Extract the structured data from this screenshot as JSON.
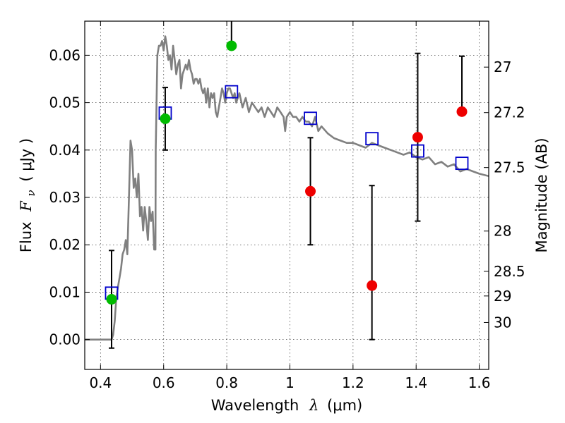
{
  "chart_data": {
    "type": "scatter",
    "title": "",
    "x_label": {
      "prefix": "Wavelength",
      "symbol": "λ",
      "unit": "(μm)"
    },
    "y_label": {
      "prefix": "Flux",
      "symbol": "F",
      "subscript": "ν",
      "unit": "( μJy )"
    },
    "y2_label": "Magnitude (AB)",
    "xlim": [
      0.35,
      1.63
    ],
    "ylim": [
      -0.0063,
      0.0672
    ],
    "x_ticks": [
      0.4,
      0.6,
      0.8,
      1.0,
      1.2,
      1.4,
      1.6
    ],
    "x_tick_labels": [
      "0.4",
      "0.6",
      "0.8",
      "1",
      "1.2",
      "1.4",
      "1.6"
    ],
    "y_ticks": [
      0.0,
      0.01,
      0.02,
      0.03,
      0.04,
      0.05,
      0.06
    ],
    "y_tick_labels": [
      "0.00",
      "0.01",
      "0.02",
      "0.03",
      "0.04",
      "0.05",
      "0.06"
    ],
    "y2_ticks": [
      {
        "flux": 0.0575,
        "label": "27"
      },
      {
        "flux": 0.0479,
        "label": "27.2"
      },
      {
        "flux": 0.0363,
        "label": "27.5"
      },
      {
        "flux": 0.0229,
        "label": "28"
      },
      {
        "flux": 0.0144,
        "label": "28.5"
      },
      {
        "flux": 0.0092,
        "label": "29"
      },
      {
        "flux": 0.0036,
        "label": "30"
      }
    ],
    "grid": true,
    "colors": {
      "sed": "#808080",
      "model": "#0000cc",
      "green": "#00bb00",
      "red": "#ee0000",
      "error": "#000000"
    },
    "sed_curve": {
      "x": [
        0.35,
        0.43,
        0.435,
        0.44,
        0.445,
        0.45,
        0.455,
        0.46,
        0.465,
        0.47,
        0.475,
        0.48,
        0.485,
        0.49,
        0.495,
        0.5,
        0.505,
        0.51,
        0.515,
        0.52,
        0.525,
        0.53,
        0.535,
        0.54,
        0.545,
        0.55,
        0.555,
        0.56,
        0.565,
        0.57,
        0.574,
        0.575,
        0.578,
        0.58,
        0.585,
        0.59,
        0.595,
        0.6,
        0.605,
        0.61,
        0.615,
        0.62,
        0.625,
        0.63,
        0.635,
        0.64,
        0.645,
        0.65,
        0.655,
        0.66,
        0.665,
        0.67,
        0.675,
        0.68,
        0.685,
        0.69,
        0.695,
        0.7,
        0.705,
        0.71,
        0.715,
        0.72,
        0.725,
        0.73,
        0.735,
        0.74,
        0.745,
        0.75,
        0.755,
        0.76,
        0.765,
        0.77,
        0.775,
        0.78,
        0.785,
        0.79,
        0.795,
        0.8,
        0.805,
        0.81,
        0.815,
        0.82,
        0.825,
        0.83,
        0.835,
        0.84,
        0.85,
        0.86,
        0.87,
        0.88,
        0.89,
        0.9,
        0.91,
        0.92,
        0.93,
        0.94,
        0.95,
        0.96,
        0.97,
        0.98,
        0.985,
        0.99,
        1.0,
        1.01,
        1.02,
        1.03,
        1.04,
        1.05,
        1.06,
        1.07,
        1.08,
        1.09,
        1.1,
        1.12,
        1.14,
        1.16,
        1.18,
        1.2,
        1.22,
        1.24,
        1.26,
        1.28,
        1.3,
        1.32,
        1.34,
        1.36,
        1.38,
        1.4,
        1.42,
        1.44,
        1.46,
        1.48,
        1.5,
        1.52,
        1.54,
        1.56,
        1.58,
        1.6,
        1.63
      ],
      "y": [
        0.0,
        0.0,
        0.0,
        0.001,
        0.004,
        0.009,
        0.011,
        0.013,
        0.015,
        0.018,
        0.019,
        0.021,
        0.018,
        0.03,
        0.042,
        0.04,
        0.032,
        0.034,
        0.03,
        0.035,
        0.026,
        0.028,
        0.023,
        0.028,
        0.025,
        0.021,
        0.028,
        0.025,
        0.027,
        0.019,
        0.019,
        0.04,
        0.052,
        0.06,
        0.062,
        0.062,
        0.063,
        0.061,
        0.064,
        0.062,
        0.059,
        0.06,
        0.057,
        0.062,
        0.059,
        0.056,
        0.058,
        0.059,
        0.053,
        0.056,
        0.057,
        0.058,
        0.057,
        0.059,
        0.057,
        0.056,
        0.054,
        0.055,
        0.055,
        0.054,
        0.055,
        0.053,
        0.052,
        0.053,
        0.05,
        0.053,
        0.049,
        0.052,
        0.051,
        0.052,
        0.048,
        0.047,
        0.049,
        0.051,
        0.053,
        0.052,
        0.05,
        0.052,
        0.053,
        0.053,
        0.052,
        0.051,
        0.052,
        0.05,
        0.051,
        0.052,
        0.049,
        0.051,
        0.048,
        0.05,
        0.049,
        0.048,
        0.049,
        0.047,
        0.049,
        0.048,
        0.047,
        0.049,
        0.048,
        0.047,
        0.044,
        0.047,
        0.048,
        0.047,
        0.047,
        0.046,
        0.047,
        0.046,
        0.046,
        0.045,
        0.047,
        0.044,
        0.045,
        0.0435,
        0.0425,
        0.042,
        0.0415,
        0.0415,
        0.041,
        0.0405,
        0.0415,
        0.041,
        0.0405,
        0.04,
        0.0395,
        0.039,
        0.0395,
        0.0385,
        0.038,
        0.0385,
        0.037,
        0.0375,
        0.0365,
        0.037,
        0.0355,
        0.036,
        0.0355,
        0.035,
        0.0345
      ]
    },
    "model_squares": {
      "x": [
        0.435,
        0.605,
        0.815,
        1.065,
        1.26,
        1.405,
        1.545
      ],
      "y": [
        0.0098,
        0.0478,
        0.0523,
        0.0467,
        0.0424,
        0.0398,
        0.0372
      ]
    },
    "observed": {
      "x": [
        0.435,
        0.605,
        0.815,
        1.065,
        1.26,
        1.405,
        1.545
      ],
      "y": [
        0.0085,
        0.0466,
        0.062,
        0.0313,
        0.0114,
        0.0427,
        0.0481
      ],
      "yerr_low": [
        0.0103,
        0.0066,
        0.0,
        0.0113,
        0.0114,
        0.0177,
        0.0
      ],
      "yerr_high": [
        0.0103,
        0.0066,
        0.01,
        0.0113,
        0.0211,
        0.0177,
        0.0117
      ],
      "series_color": [
        "green",
        "green",
        "green",
        "red",
        "red",
        "red",
        "red"
      ]
    }
  }
}
